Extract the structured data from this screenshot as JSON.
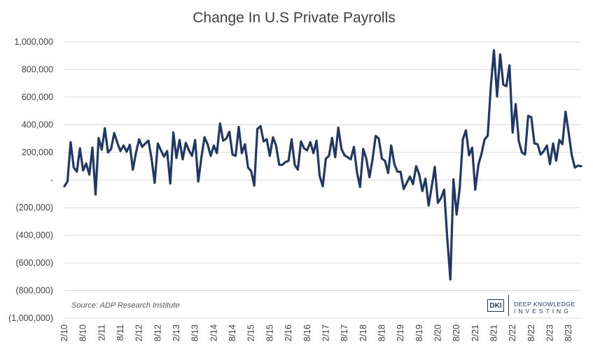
{
  "chart_data": {
    "type": "line",
    "title": "Change In U.S Private Payrolls",
    "xlabel": "",
    "ylabel": "",
    "ylim": [
      -1000000,
      1000000
    ],
    "yticks": [
      1000000,
      800000,
      600000,
      400000,
      200000,
      0,
      -200000,
      -400000,
      -600000,
      -800000,
      -1000000
    ],
    "ytick_labels": [
      "1,000,000",
      "800,000",
      "600,000",
      "400,000",
      "200,000",
      "-",
      "(200,000)",
      "(400,000)",
      "(600,000)",
      "(800,000)",
      "(1,000,000)"
    ],
    "xtick_labels": [
      "2/10",
      "8/10",
      "2/11",
      "8/11",
      "2/12",
      "8/12",
      "2/13",
      "8/13",
      "2/14",
      "8/14",
      "2/15",
      "8/15",
      "2/16",
      "8/16",
      "2/17",
      "8/17",
      "2/18",
      "8/18",
      "2/19",
      "8/19",
      "2/20",
      "8/20",
      "2/21",
      "8/21",
      "2/22",
      "8/22",
      "2/23",
      "8/23"
    ],
    "grid": true,
    "legend": "none",
    "line_color": "#1f3864",
    "series": [
      {
        "values": [
          -45000,
          -10000,
          275000,
          90000,
          60000,
          230000,
          70000,
          120000,
          40000,
          235000,
          -105000,
          305000,
          220000,
          375000,
          200000,
          225000,
          340000,
          270000,
          210000,
          250000,
          205000,
          255000,
          75000,
          200000,
          295000,
          240000,
          265000,
          285000,
          155000,
          -20000,
          265000,
          215000,
          170000,
          210000,
          -25000,
          345000,
          160000,
          290000,
          150000,
          270000,
          215000,
          175000,
          290000,
          -10000,
          160000,
          310000,
          260000,
          175000,
          250000,
          195000,
          410000,
          285000,
          300000,
          350000,
          185000,
          175000,
          385000,
          195000,
          260000,
          90000,
          65000,
          -40000,
          370000,
          390000,
          280000,
          295000,
          175000,
          310000,
          250000,
          110000,
          110000,
          130000,
          140000,
          295000,
          110000,
          75000,
          280000,
          230000,
          215000,
          275000,
          195000,
          285000,
          30000,
          -45000,
          155000,
          175000,
          305000,
          165000,
          380000,
          225000,
          180000,
          165000,
          150000,
          240000,
          55000,
          -50000,
          225000,
          155000,
          20000,
          150000,
          320000,
          300000,
          155000,
          140000,
          50000,
          250000,
          115000,
          60000,
          60000,
          -65000,
          -20000,
          25000,
          -30000,
          100000,
          40000,
          -80000,
          10000,
          -185000,
          -50000,
          95000,
          -165000,
          -130000,
          -70000,
          -420000,
          -720000,
          5000,
          -250000,
          -60000,
          295000,
          360000,
          180000,
          235000,
          -70000,
          110000,
          190000,
          295000,
          320000,
          680000,
          940000,
          605000,
          910000,
          690000,
          680000,
          830000,
          345000,
          550000,
          280000,
          200000,
          185000,
          465000,
          455000,
          265000,
          260000,
          185000,
          210000,
          250000,
          115000,
          265000,
          140000,
          290000,
          260000,
          495000,
          345000,
          180000,
          90000,
          105000,
          100000
        ]
      }
    ]
  },
  "source_note": "Source: ADP Research Institute",
  "logo": {
    "mark": "DKI",
    "line1": "DEEP KNOWLEDGE",
    "line2": "INVESTING"
  }
}
